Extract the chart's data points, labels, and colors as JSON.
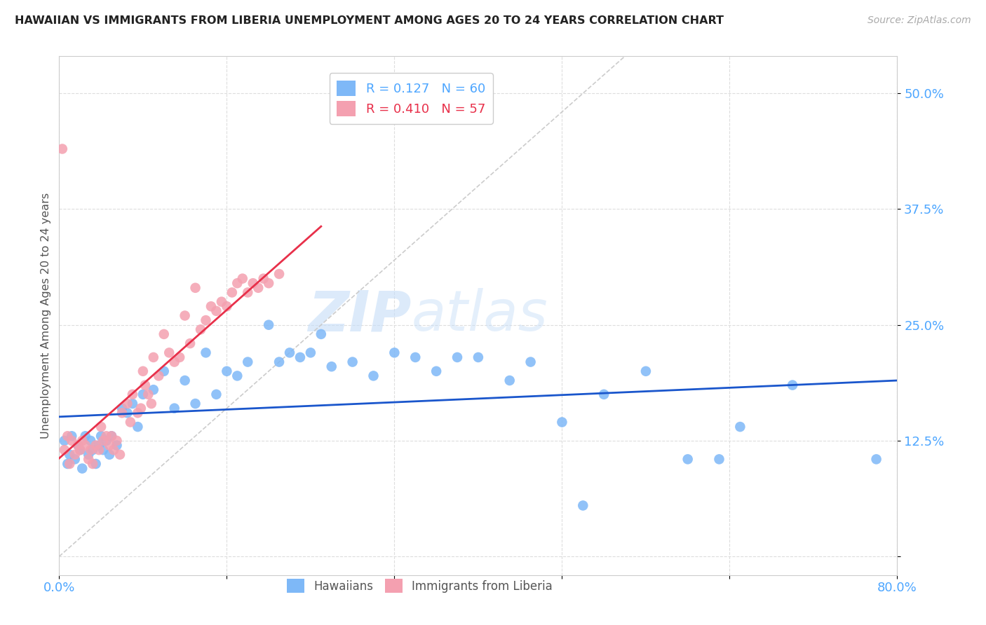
{
  "title": "HAWAIIAN VS IMMIGRANTS FROM LIBERIA UNEMPLOYMENT AMONG AGES 20 TO 24 YEARS CORRELATION CHART",
  "source": "Source: ZipAtlas.com",
  "xlabel": "",
  "ylabel": "Unemployment Among Ages 20 to 24 years",
  "xlim": [
    0,
    0.8
  ],
  "ylim": [
    -0.02,
    0.54
  ],
  "yticks": [
    0.0,
    0.125,
    0.25,
    0.375,
    0.5
  ],
  "ytick_labels": [
    "",
    "12.5%",
    "25.0%",
    "37.5%",
    "50.0%"
  ],
  "xticks": [
    0.0,
    0.16,
    0.32,
    0.48,
    0.64,
    0.8
  ],
  "xtick_labels": [
    "0.0%",
    "",
    "",
    "",
    "",
    "80.0%"
  ],
  "hawaiian_color": "#7eb8f7",
  "liberia_color": "#f4a0b0",
  "trendline_hawaiian_color": "#1a56cc",
  "trendline_liberia_color": "#e8304a",
  "diagonal_color": "#cccccc",
  "R_hawaiian": 0.127,
  "N_hawaiian": 60,
  "R_liberia": 0.41,
  "N_liberia": 57,
  "watermark_zip": "ZIP",
  "watermark_atlas": "atlas",
  "legend_label_hawaiian": "R = 0.127   N = 60",
  "legend_label_liberia": "R = 0.410   N = 57",
  "bottom_legend_hawaiian": "Hawaiians",
  "bottom_legend_liberia": "Immigrants from Liberia",
  "hawaiian_x": [
    0.005,
    0.008,
    0.01,
    0.012,
    0.015,
    0.018,
    0.02,
    0.022,
    0.025,
    0.028,
    0.03,
    0.032,
    0.035,
    0.038,
    0.04,
    0.042,
    0.045,
    0.048,
    0.05,
    0.055,
    0.06,
    0.065,
    0.07,
    0.075,
    0.08,
    0.09,
    0.1,
    0.11,
    0.12,
    0.13,
    0.14,
    0.15,
    0.16,
    0.17,
    0.18,
    0.2,
    0.21,
    0.22,
    0.23,
    0.24,
    0.25,
    0.26,
    0.28,
    0.3,
    0.32,
    0.34,
    0.36,
    0.38,
    0.4,
    0.43,
    0.45,
    0.48,
    0.5,
    0.52,
    0.56,
    0.6,
    0.63,
    0.65,
    0.7,
    0.78
  ],
  "hawaiian_y": [
    0.125,
    0.1,
    0.11,
    0.13,
    0.105,
    0.12,
    0.115,
    0.095,
    0.13,
    0.11,
    0.125,
    0.115,
    0.1,
    0.12,
    0.13,
    0.115,
    0.125,
    0.11,
    0.13,
    0.12,
    0.16,
    0.155,
    0.165,
    0.14,
    0.175,
    0.18,
    0.2,
    0.16,
    0.19,
    0.165,
    0.22,
    0.175,
    0.2,
    0.195,
    0.21,
    0.25,
    0.21,
    0.22,
    0.215,
    0.22,
    0.24,
    0.205,
    0.21,
    0.195,
    0.22,
    0.215,
    0.2,
    0.215,
    0.215,
    0.19,
    0.21,
    0.145,
    0.055,
    0.175,
    0.2,
    0.105,
    0.105,
    0.14,
    0.185,
    0.105
  ],
  "liberia_x": [
    0.003,
    0.005,
    0.008,
    0.01,
    0.012,
    0.015,
    0.018,
    0.02,
    0.022,
    0.025,
    0.028,
    0.03,
    0.032,
    0.035,
    0.038,
    0.04,
    0.042,
    0.045,
    0.048,
    0.05,
    0.052,
    0.055,
    0.058,
    0.06,
    0.065,
    0.068,
    0.07,
    0.075,
    0.078,
    0.08,
    0.082,
    0.085,
    0.088,
    0.09,
    0.095,
    0.1,
    0.105,
    0.11,
    0.115,
    0.12,
    0.125,
    0.13,
    0.135,
    0.14,
    0.145,
    0.15,
    0.155,
    0.16,
    0.165,
    0.17,
    0.175,
    0.18,
    0.185,
    0.19,
    0.195,
    0.2,
    0.21
  ],
  "liberia_y": [
    0.44,
    0.115,
    0.13,
    0.1,
    0.125,
    0.11,
    0.12,
    0.115,
    0.125,
    0.12,
    0.105,
    0.115,
    0.1,
    0.12,
    0.115,
    0.14,
    0.125,
    0.13,
    0.12,
    0.13,
    0.115,
    0.125,
    0.11,
    0.155,
    0.165,
    0.145,
    0.175,
    0.155,
    0.16,
    0.2,
    0.185,
    0.175,
    0.165,
    0.215,
    0.195,
    0.24,
    0.22,
    0.21,
    0.215,
    0.26,
    0.23,
    0.29,
    0.245,
    0.255,
    0.27,
    0.265,
    0.275,
    0.27,
    0.285,
    0.295,
    0.3,
    0.285,
    0.295,
    0.29,
    0.3,
    0.295,
    0.305
  ]
}
